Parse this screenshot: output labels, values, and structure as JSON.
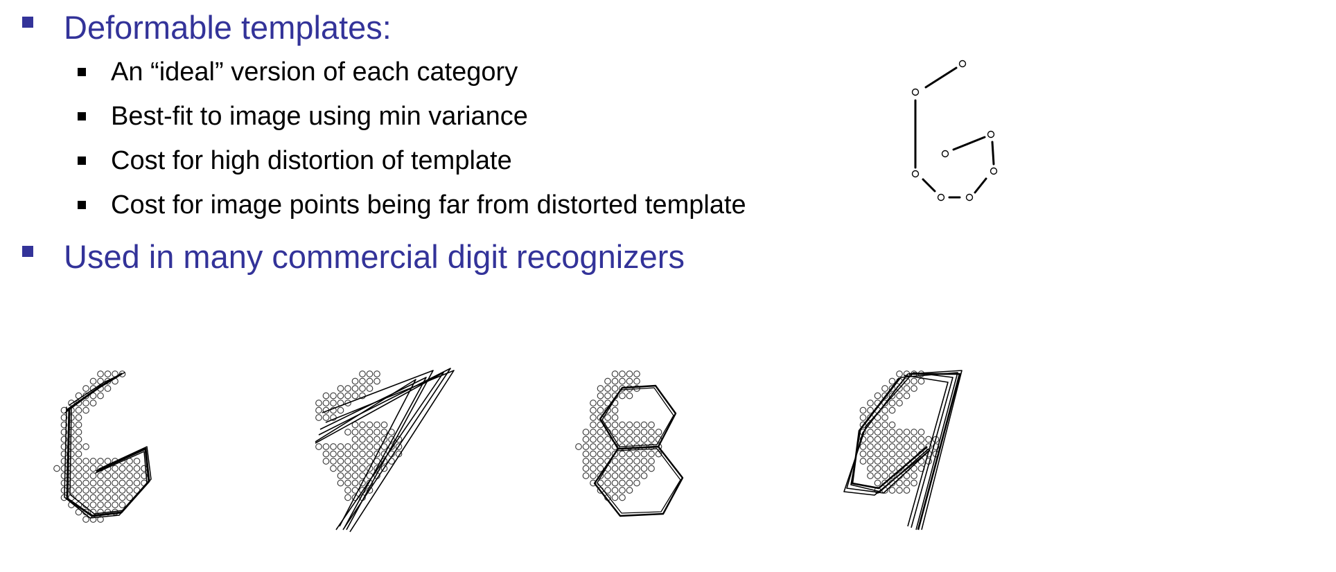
{
  "bullets": [
    {
      "text": "Deformable templates:",
      "subitems": [
        "An “ideal” version of each category",
        "Best-fit to image using min variance",
        "Cost for high distortion of template",
        "Cost for image points being far from distorted template"
      ]
    },
    {
      "text": "Used in many commercial digit recognizers",
      "subitems": []
    }
  ],
  "figures": {
    "template_digit": "6",
    "fitted_digits": [
      "6",
      "7",
      "8",
      "9"
    ]
  }
}
